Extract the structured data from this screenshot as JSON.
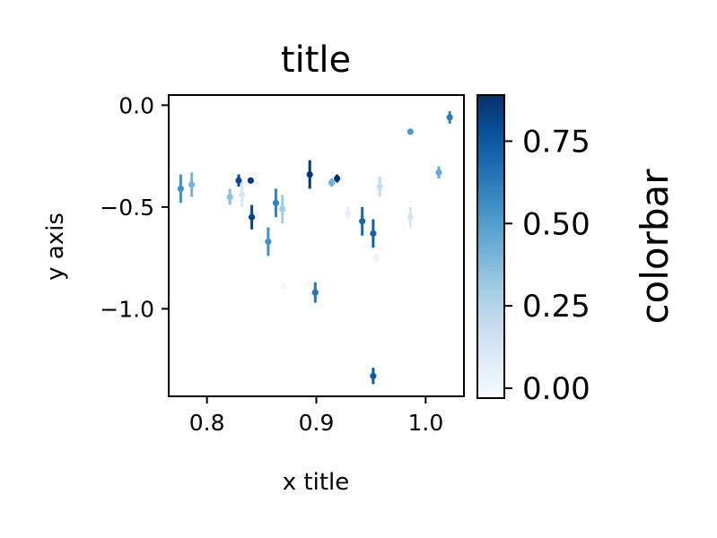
{
  "chart_data": {
    "type": "scatter",
    "title": "title",
    "xlabel": "x title",
    "ylabel": "y axis",
    "xlim": [
      0.765,
      1.035
    ],
    "ylim": [
      -1.43,
      0.05
    ],
    "xticks": [
      0.8,
      0.9,
      1.0
    ],
    "xtick_labels": [
      "0.8",
      "0.9",
      "1.0"
    ],
    "yticks": [
      0.0,
      -0.5,
      -1.0
    ],
    "ytick_labels": [
      "0.0",
      "−0.5",
      "−1.0"
    ],
    "colorbar": {
      "label": "colorbar",
      "range": [
        -0.03,
        0.89
      ],
      "ticks": [
        0.0,
        0.25,
        0.5,
        0.75
      ],
      "tick_labels": [
        "0.00",
        "0.25",
        "0.50",
        "0.75"
      ],
      "colormap": "Blues"
    },
    "grid": false,
    "points": [
      {
        "x": 0.776,
        "y": -0.41,
        "err": 0.07,
        "c": 0.55
      },
      {
        "x": 0.786,
        "y": -0.39,
        "err": 0.06,
        "c": 0.4
      },
      {
        "x": 0.821,
        "y": -0.45,
        "err": 0.04,
        "c": 0.35
      },
      {
        "x": 0.829,
        "y": -0.37,
        "err": 0.03,
        "c": 0.8
      },
      {
        "x": 0.832,
        "y": -0.44,
        "err": 0.06,
        "c": 0.12
      },
      {
        "x": 0.84,
        "y": -0.37,
        "err": 0.01,
        "c": 0.85
      },
      {
        "x": 0.841,
        "y": -0.55,
        "err": 0.06,
        "c": 0.82
      },
      {
        "x": 0.856,
        "y": -0.67,
        "err": 0.07,
        "c": 0.55
      },
      {
        "x": 0.863,
        "y": -0.48,
        "err": 0.07,
        "c": 0.6
      },
      {
        "x": 0.869,
        "y": -0.51,
        "err": 0.07,
        "c": 0.3
      },
      {
        "x": 0.87,
        "y": -0.89,
        "err": 0.02,
        "c": 0.0
      },
      {
        "x": 0.894,
        "y": -0.34,
        "err": 0.07,
        "c": 0.87
      },
      {
        "x": 0.899,
        "y": -0.92,
        "err": 0.05,
        "c": 0.65
      },
      {
        "x": 0.914,
        "y": -0.38,
        "err": 0.02,
        "c": 0.42
      },
      {
        "x": 0.919,
        "y": -0.36,
        "err": 0.02,
        "c": 0.88
      },
      {
        "x": 0.929,
        "y": -0.53,
        "err": 0.03,
        "c": 0.05
      },
      {
        "x": 0.942,
        "y": -0.57,
        "err": 0.07,
        "c": 0.7
      },
      {
        "x": 0.952,
        "y": -0.63,
        "err": 0.07,
        "c": 0.72
      },
      {
        "x": 0.952,
        "y": -1.33,
        "err": 0.04,
        "c": 0.75
      },
      {
        "x": 0.955,
        "y": -0.75,
        "err": 0.02,
        "c": 0.02
      },
      {
        "x": 0.958,
        "y": -0.4,
        "err": 0.05,
        "c": 0.2
      },
      {
        "x": 0.986,
        "y": -0.55,
        "err": 0.05,
        "c": 0.12
      },
      {
        "x": 0.986,
        "y": -0.13,
        "err": 0.01,
        "c": 0.52
      },
      {
        "x": 1.012,
        "y": -0.33,
        "err": 0.03,
        "c": 0.45
      },
      {
        "x": 1.022,
        "y": -0.06,
        "err": 0.03,
        "c": 0.62
      }
    ]
  }
}
